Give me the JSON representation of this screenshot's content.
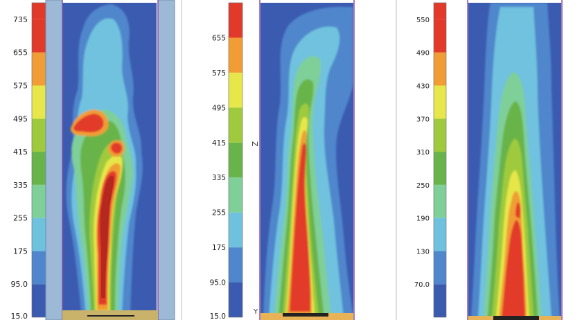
{
  "colors": {
    "palette": [
      "#3b5bb0",
      "#4f86cc",
      "#6fc2de",
      "#7fcf98",
      "#69b44a",
      "#9fca3d",
      "#e7e64a",
      "#f19d36",
      "#e23a2a"
    ],
    "wall": "#9cbad6",
    "wall_border": "#8a53a9",
    "base": "#c9b26a",
    "nozzle": "#222222",
    "divider": "#bdbdbd"
  },
  "chart_data": [
    {
      "type": "heatmap",
      "title": "",
      "colorbar": {
        "min": 15.0,
        "max": 775,
        "ticks": [
          15.0,
          95.0,
          175,
          255,
          335,
          415,
          495,
          575,
          655,
          735
        ],
        "tick_labels": [
          "15.0",
          "95.0",
          "175",
          "255",
          "335",
          "415",
          "495",
          "575",
          "655",
          "735"
        ]
      },
      "field": "turbulent plume with detached blob, peak ~775 in the core, ambient ~15",
      "walls_shown": true
    },
    {
      "type": "heatmap",
      "title": "",
      "axis_letters": [
        "Z",
        "Y"
      ],
      "colorbar": {
        "min": 15.0,
        "max": 735,
        "ticks": [
          15.0,
          95.0,
          175,
          255,
          335,
          415,
          495,
          575,
          655
        ],
        "tick_labels": [
          "15.0",
          "95.0",
          "175",
          "255",
          "335",
          "415",
          "495",
          "575",
          "655"
        ]
      },
      "field": "continuous plume core, peak in red zone, spreading upward",
      "walls_shown": false
    },
    {
      "type": "heatmap",
      "title": "",
      "colorbar": {
        "min": 10,
        "max": 580,
        "ticks": [
          70.0,
          130,
          190,
          250,
          310,
          370,
          430,
          490,
          550
        ],
        "tick_labels": [
          "70.0",
          "130",
          "190",
          "250",
          "310",
          "370",
          "430",
          "490",
          "550"
        ]
      },
      "field": "time-averaged plume, broad warm region, peak near base",
      "walls_shown": false
    }
  ]
}
